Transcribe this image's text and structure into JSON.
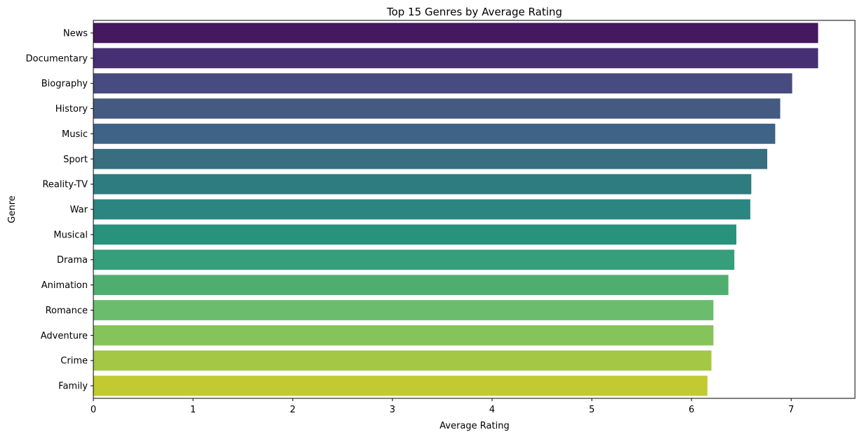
{
  "chart_data": {
    "type": "bar",
    "orientation": "horizontal",
    "title": "Top 15 Genres by Average Rating",
    "xlabel": "Average Rating",
    "ylabel": "Genre",
    "xlim": [
      0,
      7.64
    ],
    "xticks": [
      0,
      1,
      2,
      3,
      4,
      5,
      6,
      7
    ],
    "grid": false,
    "categories": [
      "News",
      "Documentary",
      "Biography",
      "History",
      "Music",
      "Sport",
      "Reality-TV",
      "War",
      "Musical",
      "Drama",
      "Animation",
      "Romance",
      "Adventure",
      "Crime",
      "Family"
    ],
    "values": [
      7.27,
      7.27,
      7.01,
      6.89,
      6.84,
      6.76,
      6.6,
      6.59,
      6.45,
      6.43,
      6.37,
      6.22,
      6.22,
      6.2,
      6.16
    ],
    "colors": [
      "#46185f",
      "#472f74",
      "#484b7f",
      "#455a81",
      "#3e6386",
      "#396e80",
      "#2e7b80",
      "#2b8580",
      "#28927c",
      "#369e7a",
      "#4fae6f",
      "#6bbc6c",
      "#85c35b",
      "#a4c746",
      "#c2ca31"
    ]
  }
}
